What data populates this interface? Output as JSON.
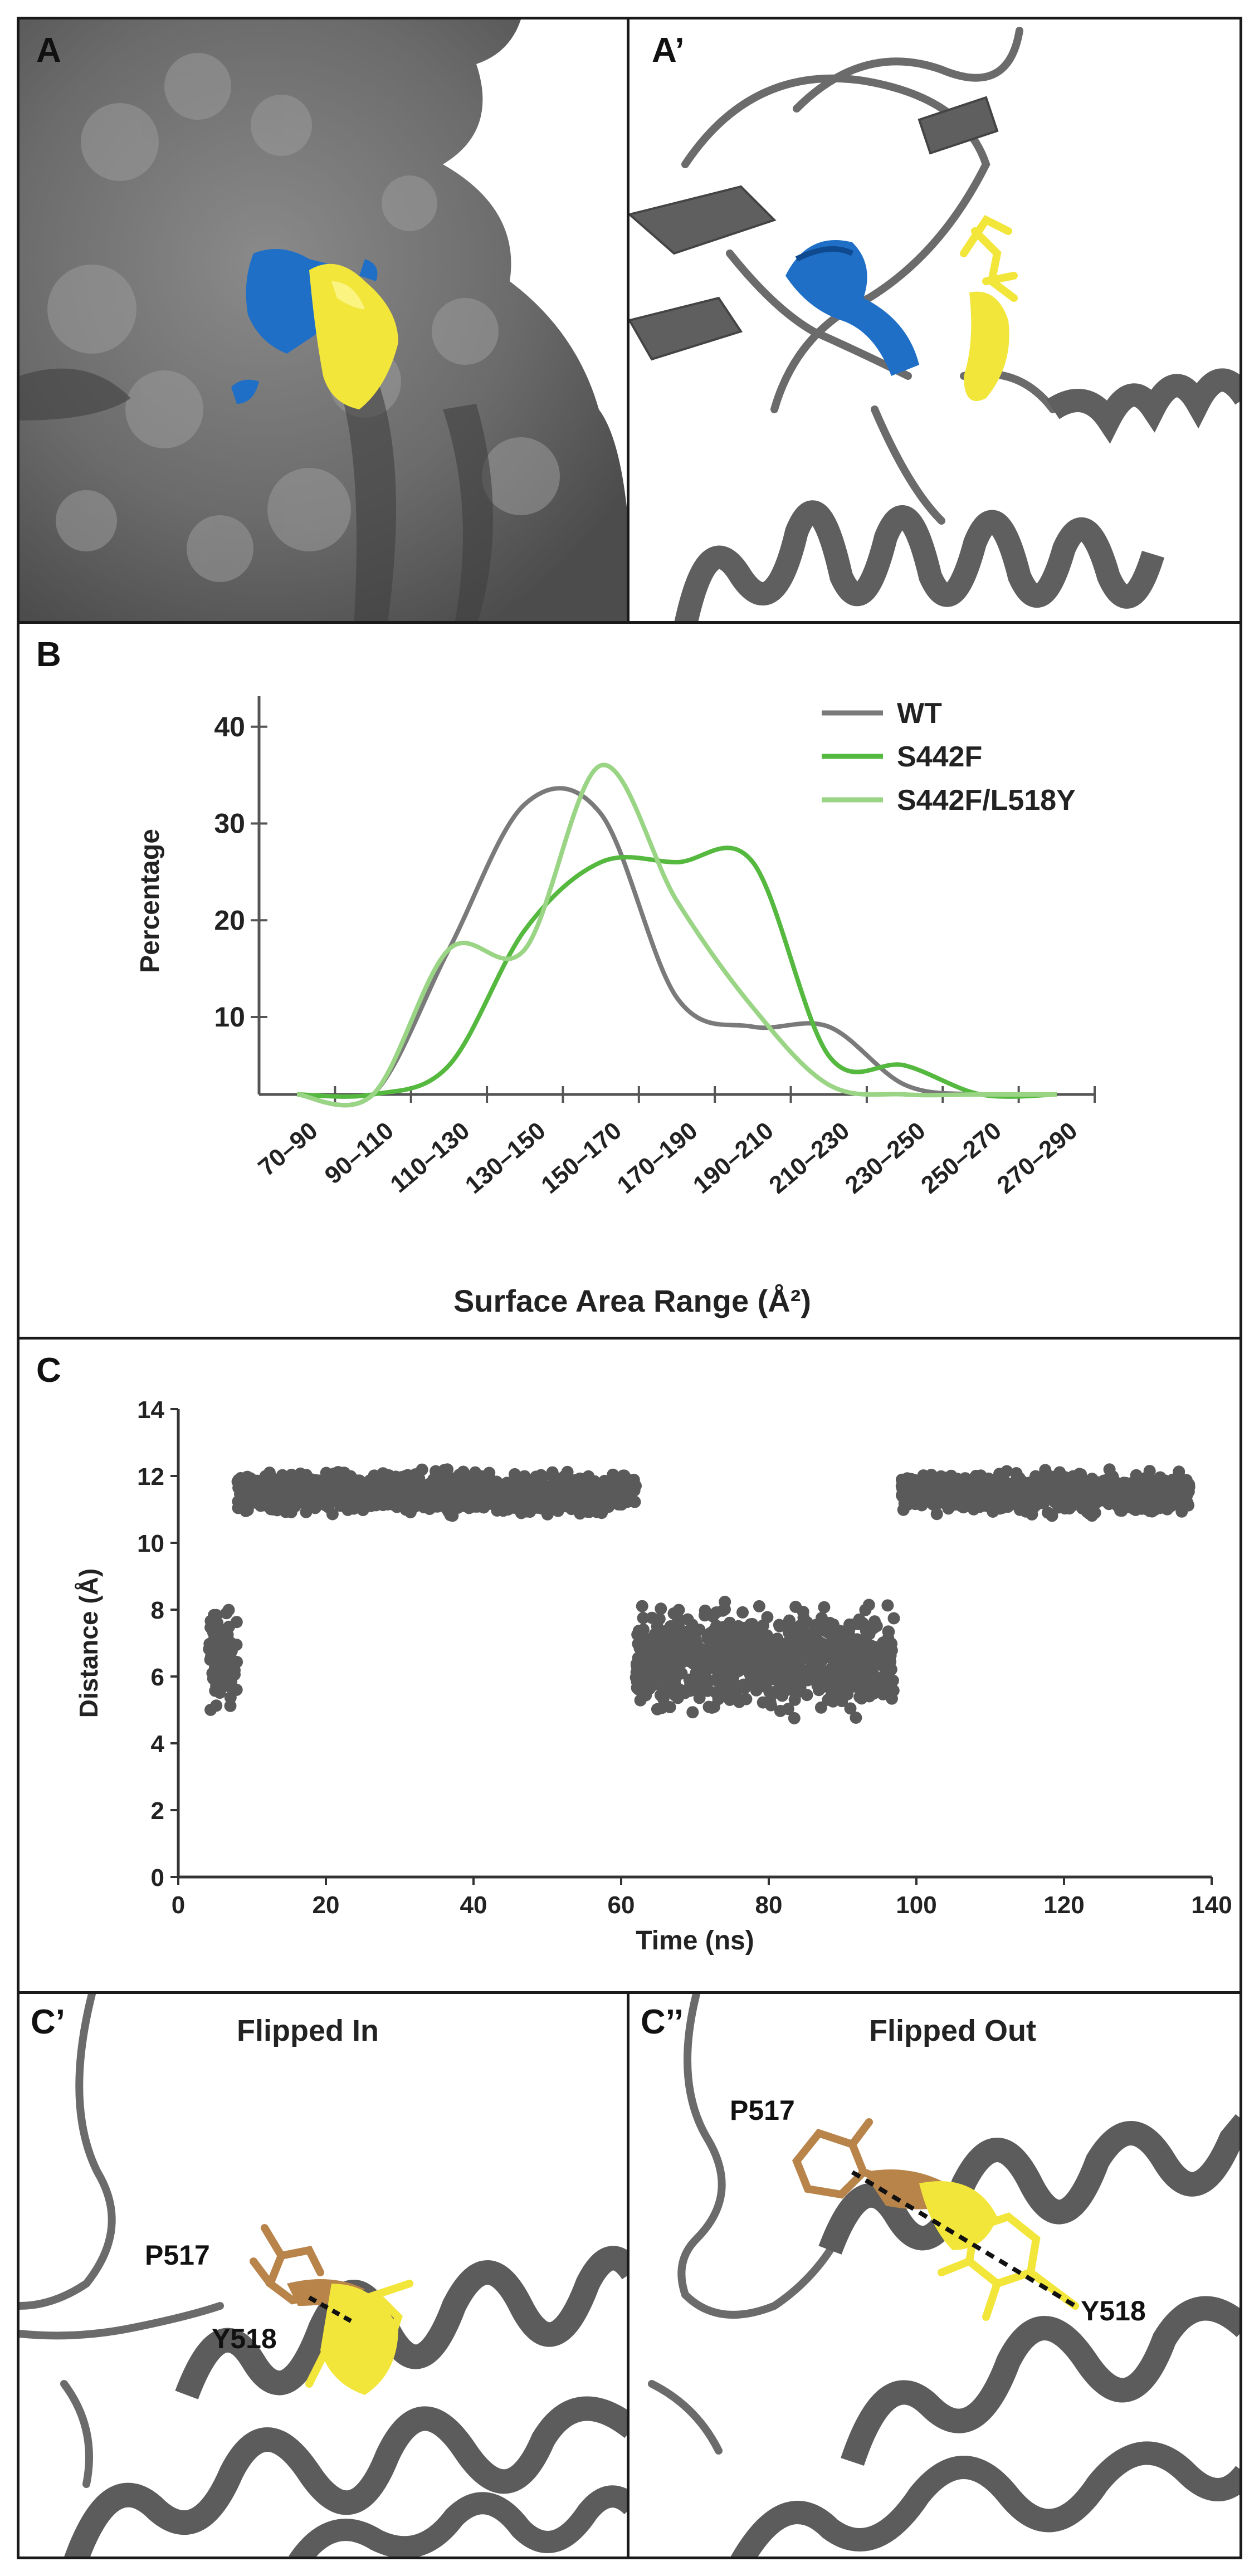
{
  "panels": {
    "a": {
      "label": "A"
    },
    "a_prime": {
      "label": "A’"
    },
    "b": {
      "label": "B"
    },
    "c": {
      "label": "C"
    },
    "c_prime": {
      "label": "C’",
      "subtitle": "Flipped In",
      "residues": [
        "P517",
        "Y518"
      ]
    },
    "c_double_prime": {
      "label": "C’’",
      "subtitle": "Flipped Out",
      "residues": [
        "P517",
        "Y518"
      ]
    }
  },
  "colors": {
    "protein_gray": "#6b6b6b",
    "region_blue": "#1f6fc7",
    "residue_yellow": "#f2e63a",
    "residue_orange": "#b8844a",
    "wt_line": "#7a7a7a",
    "s442f_line": "#55b83f",
    "s442f_l518y_line": "#9ad485",
    "scatter_point": "#5a5a5a"
  },
  "chart_data": [
    {
      "id": "surface-area-chart",
      "type": "line",
      "title": "",
      "xlabel": "Surface Area Range (Å²)",
      "ylabel": "Percentage",
      "categories": [
        "70–90",
        "90–110",
        "110–130",
        "130–150",
        "150–170",
        "170–190",
        "190–210",
        "210–230",
        "230–250",
        "250–270",
        "270–290"
      ],
      "yticks": [
        10,
        20,
        30,
        40
      ],
      "ylim": [
        2,
        42
      ],
      "legend_position": "top-right",
      "series": [
        {
          "name": "WT",
          "values": [
            2,
            2,
            17,
            32,
            31,
            12,
            9,
            9,
            3,
            2,
            2
          ]
        },
        {
          "name": "S442F",
          "values": [
            2,
            2,
            5,
            19,
            26,
            26,
            26,
            6,
            5,
            2,
            2
          ]
        },
        {
          "name": "S442F/L518Y",
          "values": [
            2,
            2,
            17,
            17,
            36,
            22,
            11,
            3,
            2,
            2,
            2
          ]
        }
      ]
    },
    {
      "id": "distance-time-chart",
      "type": "scatter",
      "title": "",
      "xlabel": "Time (ns)",
      "ylabel": "Distance (Å)",
      "xticks": [
        0,
        20,
        40,
        60,
        80,
        100,
        120,
        140
      ],
      "yticks": [
        0,
        2,
        4,
        6,
        8,
        10,
        12,
        14
      ],
      "xlim": [
        0,
        140
      ],
      "ylim": [
        0,
        14
      ],
      "segments": [
        {
          "t_start": 4,
          "t_end": 8,
          "center": 6.5,
          "spread": 2.0
        },
        {
          "t_start": 8,
          "t_end": 62,
          "center": 11.5,
          "spread": 0.8
        },
        {
          "t_start": 62,
          "t_end": 97,
          "center": 6.5,
          "spread": 2.0
        },
        {
          "t_start": 98,
          "t_end": 137,
          "center": 11.5,
          "spread": 0.8
        }
      ]
    }
  ]
}
